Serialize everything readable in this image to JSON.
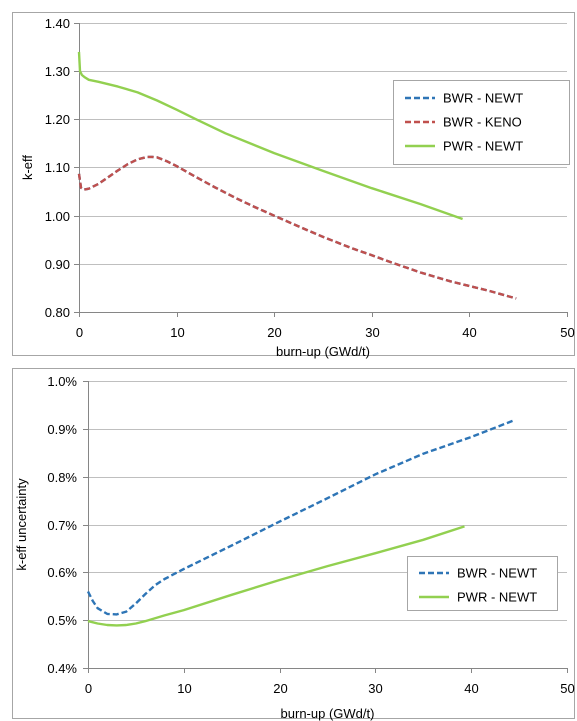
{
  "chart_data": [
    {
      "type": "line",
      "xlabel": "burn-up (GWd/t)",
      "ylabel": "k-eff",
      "xlim": [
        0,
        50
      ],
      "ylim": [
        0.8,
        1.4
      ],
      "xticks": [
        0,
        10,
        20,
        30,
        40,
        50
      ],
      "xtick_labels": [
        "0",
        "10",
        "20",
        "30",
        "40",
        "50"
      ],
      "yticks": [
        0.8,
        0.9,
        1.0,
        1.1,
        1.2,
        1.3,
        1.4
      ],
      "ytick_labels": [
        "0.80",
        "0.90",
        "1.00",
        "1.10",
        "1.20",
        "1.30",
        "1.40"
      ],
      "grid": "horizontal",
      "legend_position": "right",
      "series": [
        {
          "name": "BWR - NEWT",
          "color": "#2e75b6",
          "dash": "dashed",
          "x": [
            0,
            0.2,
            0.5,
            1,
            2,
            3,
            4,
            5,
            6,
            7,
            7.5,
            8,
            9,
            10,
            12,
            14,
            16,
            18,
            20,
            22,
            25,
            28,
            30,
            32,
            35,
            38,
            40,
            42,
            44.8
          ],
          "y": [
            1.087,
            1.058,
            1.054,
            1.056,
            1.066,
            1.08,
            1.094,
            1.107,
            1.117,
            1.122,
            1.122,
            1.121,
            1.113,
            1.103,
            1.08,
            1.058,
            1.037,
            1.018,
            1.0,
            0.982,
            0.956,
            0.932,
            0.918,
            0.903,
            0.882,
            0.864,
            0.854,
            0.844,
            0.828
          ]
        },
        {
          "name": "BWR - KENO",
          "color": "#c0504d",
          "dash": "dashed",
          "x": [
            0,
            0.2,
            0.5,
            1,
            2,
            3,
            4,
            5,
            6,
            7,
            7.5,
            8,
            9,
            10,
            12,
            14,
            16,
            18,
            20,
            22,
            25,
            28,
            30,
            32,
            35,
            38,
            40,
            42,
            44.8
          ],
          "y": [
            1.087,
            1.058,
            1.054,
            1.056,
            1.066,
            1.08,
            1.094,
            1.107,
            1.117,
            1.122,
            1.122,
            1.121,
            1.113,
            1.103,
            1.08,
            1.058,
            1.037,
            1.018,
            1.0,
            0.982,
            0.956,
            0.932,
            0.918,
            0.903,
            0.882,
            0.864,
            0.854,
            0.844,
            0.828
          ]
        },
        {
          "name": "PWR - NEWT",
          "color": "#92d050",
          "dash": "solid",
          "x": [
            0,
            0.1,
            0.3,
            0.6,
            1,
            2,
            4,
            6,
            8,
            10,
            12,
            15,
            20,
            25,
            30,
            35,
            39.3
          ],
          "y": [
            1.34,
            1.3,
            1.292,
            1.287,
            1.282,
            1.278,
            1.268,
            1.256,
            1.239,
            1.22,
            1.2,
            1.171,
            1.13,
            1.093,
            1.057,
            1.024,
            0.993
          ]
        }
      ]
    },
    {
      "type": "line",
      "xlabel": "burn-up (GWd/t)",
      "ylabel": "k-eff uncertainty",
      "xlim": [
        0,
        50
      ],
      "ylim": [
        0.004,
        0.01
      ],
      "xticks": [
        0,
        10,
        20,
        30,
        40,
        50
      ],
      "xtick_labels": [
        "0",
        "10",
        "20",
        "30",
        "40",
        "50"
      ],
      "yticks": [
        0.004,
        0.005,
        0.006,
        0.007,
        0.008,
        0.009,
        0.01
      ],
      "ytick_labels": [
        "0.4%",
        "0.5%",
        "0.6%",
        "0.7%",
        "0.8%",
        "0.9%",
        "1.0%"
      ],
      "grid": "horizontal",
      "legend_position": "right",
      "series": [
        {
          "name": "BWR - NEWT",
          "color": "#2e75b6",
          "dash": "dashed",
          "x": [
            0,
            0.5,
            1,
            2,
            3,
            4,
            5,
            6,
            7,
            8,
            10,
            15,
            20,
            25,
            30,
            35,
            40,
            44.5
          ],
          "y": [
            0.0056,
            0.0054,
            0.00525,
            0.00513,
            0.00512,
            0.00518,
            0.00535,
            0.00555,
            0.00573,
            0.00586,
            0.00607,
            0.00656,
            0.00706,
            0.00755,
            0.00805,
            0.00848,
            0.00883,
            0.00918
          ]
        },
        {
          "name": "PWR - NEWT",
          "color": "#92d050",
          "dash": "solid",
          "x": [
            0,
            1,
            2,
            3,
            4,
            5,
            6,
            8,
            10,
            15,
            20,
            25,
            30,
            35,
            39.3
          ],
          "y": [
            0.00498,
            0.00493,
            0.0049,
            0.00489,
            0.0049,
            0.00493,
            0.00498,
            0.0051,
            0.00521,
            0.00553,
            0.00584,
            0.00613,
            0.0064,
            0.00668,
            0.00696
          ]
        }
      ]
    }
  ]
}
